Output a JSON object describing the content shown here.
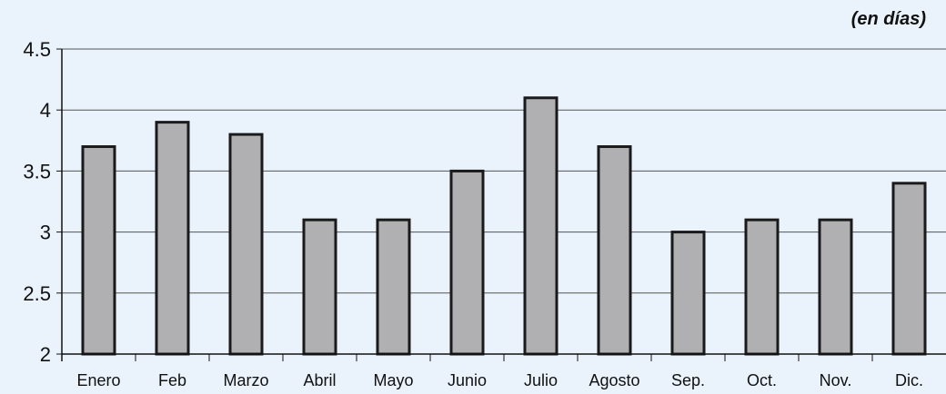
{
  "chart_data": {
    "type": "bar",
    "unit_label": "(en días)",
    "categories": [
      "Enero",
      "Feb",
      "Marzo",
      "Abril",
      "Mayo",
      "Junio",
      "Julio",
      "Agosto",
      "Sep.",
      "Oct.",
      "Nov.",
      "Dic."
    ],
    "values": [
      3.7,
      3.9,
      3.8,
      3.1,
      3.1,
      3.5,
      4.1,
      3.7,
      3.0,
      3.1,
      3.1,
      3.4
    ],
    "ylim": [
      2,
      4.5
    ],
    "yticks": [
      "2",
      "2.5",
      "3",
      "3.5",
      "4",
      "4.5"
    ],
    "grid": true,
    "colors": {
      "bar_fill": "#b0b0b2",
      "bar_stroke": "#1a1a1a",
      "background": "#eaf3fb",
      "grid": "#555555"
    }
  }
}
